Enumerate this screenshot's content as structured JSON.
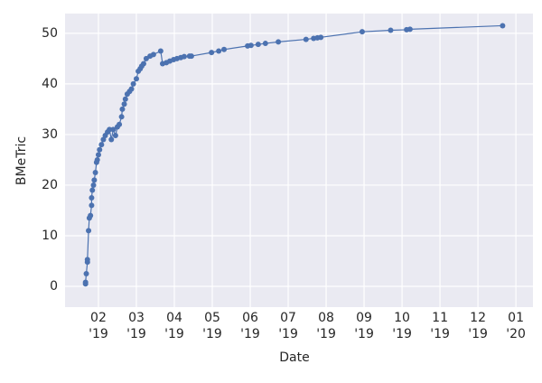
{
  "chart_data": {
    "type": "line",
    "xlabel": "Date",
    "ylabel": "BMeTric",
    "x": [
      1.66,
      1.66,
      1.68,
      1.71,
      1.71,
      1.74,
      1.76,
      1.79,
      1.82,
      1.82,
      1.84,
      1.87,
      1.89,
      1.92,
      1.95,
      1.97,
      2.0,
      2.03,
      2.08,
      2.13,
      2.18,
      2.24,
      2.29,
      2.34,
      2.39,
      2.45,
      2.5,
      2.55,
      2.61,
      2.63,
      2.68,
      2.71,
      2.76,
      2.82,
      2.87,
      2.92,
      3.0,
      3.05,
      3.1,
      3.14,
      3.19,
      3.26,
      3.36,
      3.45,
      3.64,
      3.69,
      3.79,
      3.88,
      3.98,
      4.07,
      4.17,
      4.26,
      4.4,
      4.45,
      4.98,
      5.17,
      5.31,
      5.93,
      6.02,
      6.21,
      6.4,
      6.74,
      7.47,
      7.67,
      7.77,
      7.86,
      8.95,
      9.7,
      10.12,
      10.21,
      12.65
    ],
    "series": [
      {
        "color": "#4c72b0",
        "values": [
          0.5,
          0.8,
          2.5,
          4.8,
          5.3,
          11,
          13.5,
          14,
          16,
          17.5,
          19,
          20,
          21,
          22.5,
          24.5,
          25,
          26,
          27,
          28,
          29,
          29.8,
          30.5,
          31,
          29,
          31,
          29.8,
          31.5,
          32,
          33.5,
          35,
          36,
          37,
          38,
          38.5,
          39,
          40,
          41,
          42.5,
          43,
          43.5,
          44,
          45,
          45.5,
          45.8,
          46.5,
          44,
          44.2,
          44.5,
          44.8,
          45,
          45.2,
          45.4,
          45.5,
          45.5,
          46.2,
          46.5,
          46.8,
          47.5,
          47.6,
          47.8,
          48,
          48.3,
          48.8,
          49,
          49.1,
          49.2,
          50.3,
          50.6,
          50.7,
          50.8,
          51.5
        ]
      }
    ],
    "xlim": [
      1.12,
      13.45
    ],
    "xticks": [
      {
        "value": 2,
        "label": [
          "02",
          "'19"
        ]
      },
      {
        "value": 3,
        "label": [
          "03",
          "'19"
        ]
      },
      {
        "value": 4,
        "label": [
          "04",
          "'19"
        ]
      },
      {
        "value": 5,
        "label": [
          "05",
          "'19"
        ]
      },
      {
        "value": 6,
        "label": [
          "06",
          "'19"
        ]
      },
      {
        "value": 7,
        "label": [
          "07",
          "'19"
        ]
      },
      {
        "value": 8,
        "label": [
          "08",
          "'19"
        ]
      },
      {
        "value": 9,
        "label": [
          "09",
          "'19"
        ]
      },
      {
        "value": 10,
        "label": [
          "10",
          "'19"
        ]
      },
      {
        "value": 11,
        "label": [
          "11",
          "'19"
        ]
      },
      {
        "value": 12,
        "label": [
          "12",
          "'19"
        ]
      },
      {
        "value": 13,
        "label": [
          "01",
          "'20"
        ]
      }
    ],
    "ylim": [
      -4.1,
      53.9
    ],
    "yticks": [
      0,
      10,
      20,
      30,
      40,
      50
    ],
    "grid": true
  }
}
